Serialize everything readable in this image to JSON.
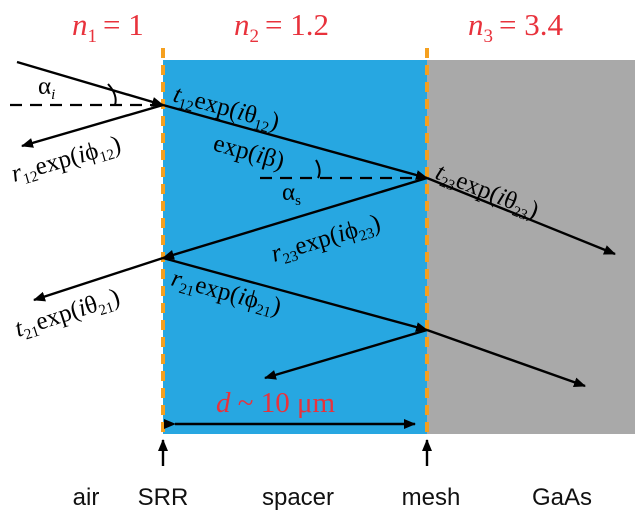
{
  "media": {
    "n1": {
      "symbol": "n",
      "subscript": "1",
      "value": "= 1"
    },
    "n2": {
      "symbol": "n",
      "subscript": "2",
      "value": "= 1.2"
    },
    "n3": {
      "symbol": "n",
      "subscript": "3",
      "value": "= 3.4"
    }
  },
  "angles": {
    "incident": {
      "symbol": "α",
      "subscript": "i"
    },
    "spacer": {
      "symbol": "α",
      "subscript": "s"
    }
  },
  "coefficients": {
    "t12": {
      "base": "t",
      "sub": "12",
      "func": "exp(",
      "i": "i",
      "phase": "θ",
      "psub": "12",
      "close": ")"
    },
    "r12": {
      "base": "r",
      "sub": "12",
      "func": "exp(",
      "i": "i",
      "phase": "ϕ",
      "psub": "12",
      "close": ")"
    },
    "propagation": {
      "func": "exp(",
      "i": "i",
      "phase": "β",
      "close": ")"
    },
    "t23": {
      "base": "t",
      "sub": "23",
      "func": "exp(",
      "i": "i",
      "phase": "θ",
      "psub": "23",
      "close": ")"
    },
    "r23": {
      "base": "r",
      "sub": "23",
      "func": "exp(",
      "i": "i",
      "phase": "ϕ",
      "psub": "23",
      "close": ")"
    },
    "t21": {
      "base": "t",
      "sub": "21",
      "func": "exp(",
      "i": "i",
      "phase": "θ",
      "psub": "21",
      "close": ")"
    },
    "r21": {
      "base": "r",
      "sub": "21",
      "func": "exp(",
      "i": "i",
      "phase": "ϕ",
      "psub": "21",
      "close": ")"
    }
  },
  "thickness": {
    "symbol": "d",
    "text": " ~ 10 μm"
  },
  "bottom_labels": [
    "air",
    "SRR",
    "spacer",
    "mesh",
    "GaAs"
  ],
  "colors": {
    "spacer": "#27a7e1",
    "gaas": "#a9a9a9",
    "interface": "#f5a01f",
    "index_text": "#e8323c",
    "ray": "#000000"
  }
}
